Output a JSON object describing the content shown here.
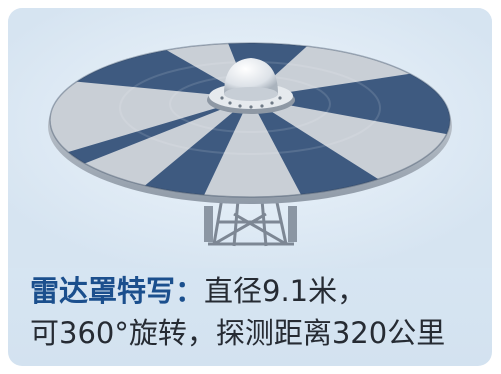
{
  "caption": {
    "label": "雷达罩特写：",
    "line1_rest": "直径9.1米，",
    "line2": "可360°旋转，探测距离320公里"
  },
  "colors": {
    "panel_background": "#dbe8f4",
    "dish_dark_segment": "#3e5a80",
    "dish_light_segment": "#c9cfd6",
    "label_blue": "#1b4f8d"
  },
  "icons": [
    "radar-dome-icon",
    "support-pylon-icon"
  ]
}
